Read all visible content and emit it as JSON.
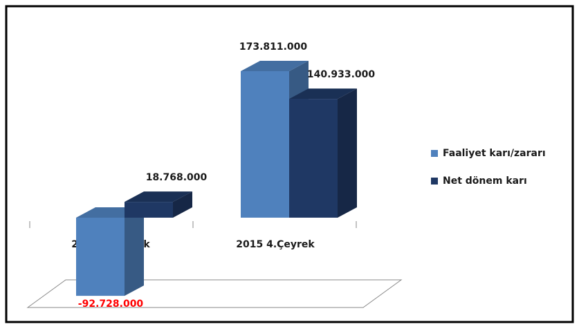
{
  "chart_data": {
    "type": "bar3d",
    "categories": [
      "2014 4.Çeyrek",
      "2015 4.Çeyrek"
    ],
    "series": [
      {
        "name": "Faaliyet karı/zararı",
        "color": "#4f81bd",
        "values": [
          -92728000,
          173811000
        ],
        "value_labels": [
          "-92.728.000",
          "173.811.000"
        ]
      },
      {
        "name": "Net dönem karı",
        "color": "#1f3864",
        "values": [
          18768000,
          140933000
        ],
        "value_labels": [
          "18.768.000",
          "140.933.000"
        ]
      }
    ],
    "negative_label_color": "#ff0000",
    "legend": "right"
  }
}
